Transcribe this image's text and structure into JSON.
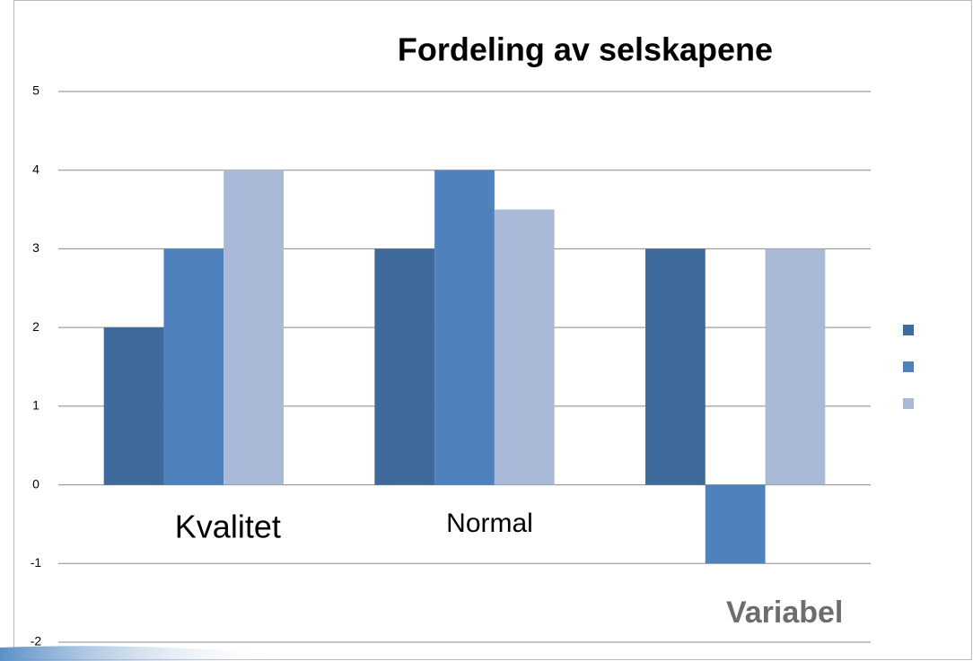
{
  "chart_data": {
    "type": "bar",
    "title": "Fordeling av selskapene",
    "categories": [
      "Kvalitet",
      "Normal",
      "Variabel"
    ],
    "series": [
      {
        "color": "#3f6a9c",
        "values": [
          2,
          3,
          3
        ]
      },
      {
        "color": "#4f81bd",
        "values": [
          3,
          4,
          -1
        ]
      },
      {
        "color": "#aab9d8",
        "values": [
          4,
          3.5,
          3
        ]
      }
    ],
    "ylim": [
      -2,
      5
    ],
    "yticks": [
      -2,
      -1,
      0,
      1,
      2,
      3,
      4,
      5
    ],
    "grid": true,
    "legend": "right"
  }
}
